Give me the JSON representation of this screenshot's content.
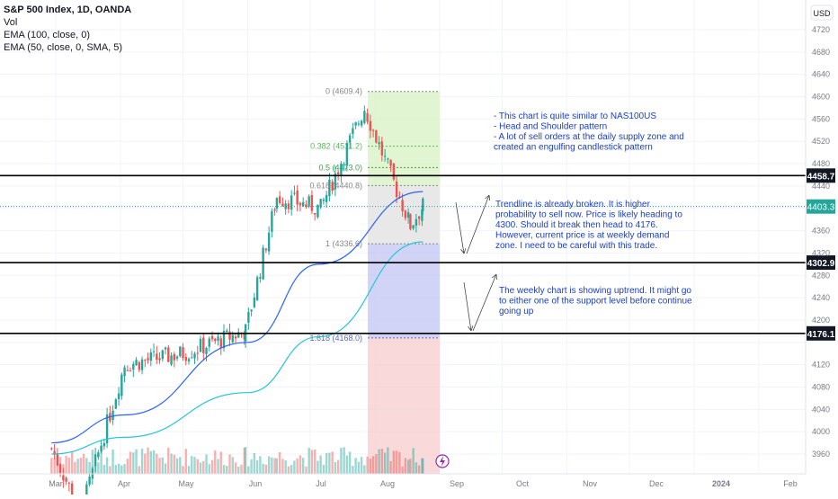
{
  "legend": {
    "symbol": "S&P 500 Index, 1D, OANDA",
    "vol": "Vol",
    "ema100": "EMA (100, close, 0)",
    "ema50": "EMA (50, close, 0, SMA, 5)"
  },
  "colors": {
    "up": "#26a69a",
    "down": "#ef5350",
    "ema100": "#2962ff",
    "ema50": "#26c6da",
    "fib_green": "#d9f2c7",
    "fib_grey": "#e6e6e6",
    "fib_blue": "#c5c8f5",
    "fib_red": "#f8d0d0",
    "note_text": "#1a3fbf"
  },
  "chart_data": {
    "type": "candlestick",
    "title": "S&P 500 Index, 1D, OANDA",
    "currency": "USD",
    "ylim": [
      3940,
      4740
    ],
    "y_ticks": [
      3960,
      4000,
      4040,
      4080,
      4120,
      4160,
      4200,
      4240,
      4280,
      4320,
      4360,
      4400,
      4440,
      4480,
      4520,
      4560,
      4600,
      4640,
      4680,
      4720
    ],
    "x_ticks": [
      "Mar",
      "Apr",
      "May",
      "Jun",
      "Jul",
      "Aug",
      "Sep",
      "Oct",
      "Nov",
      "Dec",
      "2024",
      "Feb"
    ],
    "horizontal_levels": [
      {
        "price": 4458.7,
        "label": "4458.7"
      },
      {
        "price": 4302.9,
        "label": "4302.9"
      },
      {
        "price": 4176.1,
        "label": "4176.1"
      }
    ],
    "last_price": {
      "price": 4403.3,
      "label": "4403.3"
    },
    "fibonacci": [
      {
        "ratio": "0",
        "label": "0 (4609.4)",
        "price": 4609.4
      },
      {
        "ratio": "0.382",
        "label": "0.382 (4511.2)",
        "price": 4511.2
      },
      {
        "ratio": "0.5",
        "label": "0.5 (4473.0)",
        "price": 4473.0
      },
      {
        "ratio": "0.618",
        "label": "0.618 (4440.8)",
        "price": 4440.8
      },
      {
        "ratio": "1",
        "label": "1 (4336.6)",
        "price": 4336.6
      },
      {
        "ratio": "1.618",
        "label": "1.618 (4168.0)",
        "price": 4168.0
      }
    ],
    "ohlc_key_points": [
      {
        "date": "2023-02-27",
        "close": 3970
      },
      {
        "date": "2023-03-13",
        "close": 3855
      },
      {
        "date": "2023-04-03",
        "close": 4120
      },
      {
        "date": "2023-05-01",
        "close": 4140
      },
      {
        "date": "2023-05-31",
        "close": 4180
      },
      {
        "date": "2023-06-15",
        "close": 4420
      },
      {
        "date": "2023-07-06",
        "close": 4400
      },
      {
        "date": "2023-07-27",
        "close": 4580
      },
      {
        "date": "2023-08-18",
        "close": 4370
      },
      {
        "date": "2023-08-24",
        "close": 4403.3
      }
    ],
    "ema100_key_points": [
      {
        "date": "2023-02-27",
        "value": 3980
      },
      {
        "date": "2023-04-03",
        "value": 4030
      },
      {
        "date": "2023-06-01",
        "value": 4160
      },
      {
        "date": "2023-07-05",
        "value": 4300
      },
      {
        "date": "2023-08-24",
        "value": 4430
      }
    ],
    "ema50_key_points": [
      {
        "date": "2023-02-27",
        "value": 3960
      },
      {
        "date": "2023-04-03",
        "value": 3990
      },
      {
        "date": "2023-06-01",
        "value": 4070
      },
      {
        "date": "2023-07-05",
        "value": 4170
      },
      {
        "date": "2023-08-24",
        "value": 4340
      }
    ]
  },
  "annotations": {
    "note1": [
      "- This chart is quite similar to NAS100US",
      "- Head and Shoulder pattern",
      "- A lot of sell orders at the daily supply zone and",
      "created an engulfing candlestick pattern"
    ],
    "note2": [
      "Trendline is already broken. It is higher",
      "probability to sell now. Price is likely heading to",
      "4300. Should it break then head to 4176.",
      "However, current price is at weekly demand",
      "zone. I need to be careful with this trade."
    ],
    "note3": [
      "The weekly chart is showing uptrend. It might go",
      "to either one of the support level before continue",
      "going up"
    ]
  }
}
